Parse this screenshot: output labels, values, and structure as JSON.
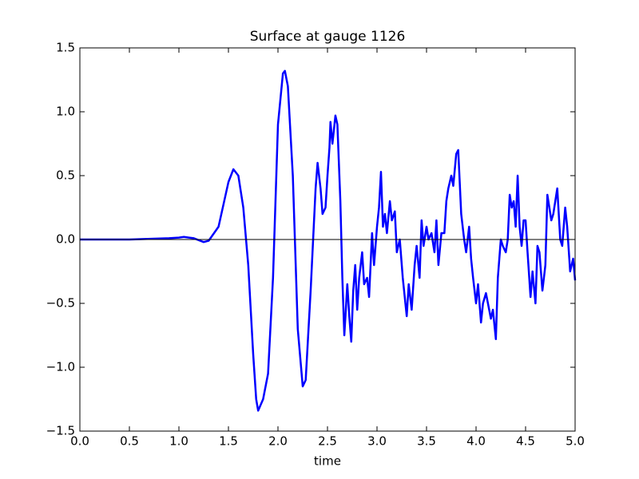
{
  "chart_data": {
    "type": "line",
    "title": "Surface at gauge 1126",
    "x_label": "time",
    "x": [
      0,
      0.5,
      0.9,
      1.0,
      1.05,
      1.1,
      1.15,
      1.25,
      1.3,
      1.4,
      1.5,
      1.55,
      1.6,
      1.65,
      1.7,
      1.75,
      1.78,
      1.8,
      1.85,
      1.9,
      1.95,
      2.0,
      2.05,
      2.07,
      2.1,
      2.15,
      2.2,
      2.25,
      2.28,
      2.33,
      2.38,
      2.4,
      2.43,
      2.45,
      2.48,
      2.5,
      2.52,
      2.53,
      2.55,
      2.58,
      2.6,
      2.63,
      2.65,
      2.67,
      2.7,
      2.72,
      2.74,
      2.76,
      2.78,
      2.8,
      2.82,
      2.85,
      2.87,
      2.9,
      2.92,
      2.95,
      2.97,
      3.0,
      3.02,
      3.04,
      3.06,
      3.08,
      3.1,
      3.13,
      3.15,
      3.18,
      3.2,
      3.23,
      3.26,
      3.3,
      3.32,
      3.35,
      3.38,
      3.4,
      3.43,
      3.45,
      3.47,
      3.5,
      3.52,
      3.55,
      3.58,
      3.6,
      3.62,
      3.65,
      3.68,
      3.7,
      3.72,
      3.75,
      3.77,
      3.8,
      3.82,
      3.85,
      3.88,
      3.9,
      3.93,
      3.95,
      3.97,
      4.0,
      4.02,
      4.05,
      4.07,
      4.1,
      4.12,
      4.15,
      4.17,
      4.2,
      4.22,
      4.25,
      4.27,
      4.3,
      4.32,
      4.34,
      4.36,
      4.38,
      4.4,
      4.42,
      4.44,
      4.46,
      4.48,
      4.5,
      4.52,
      4.55,
      4.57,
      4.6,
      4.62,
      4.64,
      4.67,
      4.7,
      4.72,
      4.74,
      4.76,
      4.78,
      4.8,
      4.82,
      4.85,
      4.87,
      4.9,
      4.92,
      4.95,
      4.98,
      5.0
    ],
    "series": [
      {
        "color": "#0000ff",
        "values": [
          0,
          0,
          0.01,
          0.015,
          0.02,
          0.015,
          0.01,
          -0.02,
          -0.01,
          0.1,
          0.45,
          0.55,
          0.5,
          0.25,
          -0.2,
          -0.9,
          -1.25,
          -1.34,
          -1.25,
          -1.05,
          -0.3,
          0.9,
          1.3,
          1.32,
          1.2,
          0.5,
          -0.7,
          -1.15,
          -1.1,
          -0.4,
          0.4,
          0.6,
          0.4,
          0.2,
          0.25,
          0.5,
          0.72,
          0.92,
          0.75,
          0.97,
          0.9,
          0.3,
          -0.3,
          -0.75,
          -0.35,
          -0.6,
          -0.8,
          -0.4,
          -0.2,
          -0.55,
          -0.3,
          -0.1,
          -0.35,
          -0.3,
          -0.45,
          0.05,
          -0.2,
          0.1,
          0.25,
          0.53,
          0.1,
          0.2,
          0.05,
          0.3,
          0.15,
          0.22,
          -0.1,
          0.0,
          -0.3,
          -0.6,
          -0.35,
          -0.55,
          -0.2,
          -0.05,
          -0.3,
          0.15,
          -0.05,
          0.1,
          0.0,
          0.05,
          -0.1,
          0.15,
          -0.2,
          0.05,
          0.05,
          0.3,
          0.4,
          0.5,
          0.42,
          0.67,
          0.7,
          0.2,
          0.0,
          -0.1,
          0.1,
          -0.15,
          -0.3,
          -0.5,
          -0.35,
          -0.65,
          -0.5,
          -0.42,
          -0.5,
          -0.62,
          -0.55,
          -0.78,
          -0.3,
          0.0,
          -0.05,
          -0.1,
          0.0,
          0.35,
          0.25,
          0.3,
          0.1,
          0.5,
          0.1,
          -0.05,
          0.15,
          0.15,
          -0.1,
          -0.45,
          -0.25,
          -0.5,
          -0.05,
          -0.1,
          -0.4,
          -0.2,
          0.35,
          0.25,
          0.15,
          0.2,
          0.3,
          0.4,
          0.0,
          -0.05,
          0.25,
          0.1,
          -0.25,
          -0.15,
          -0.32
        ]
      }
    ],
    "hline": 0,
    "xlim": [
      0,
      5
    ],
    "ylim": [
      -1.5,
      1.5
    ],
    "xticks": [
      {
        "value": 0,
        "label": "0.0"
      },
      {
        "value": 0.5,
        "label": "0.5"
      },
      {
        "value": 1,
        "label": "1.0"
      },
      {
        "value": 1.5,
        "label": "1.5"
      },
      {
        "value": 2,
        "label": "2.0"
      },
      {
        "value": 2.5,
        "label": "2.5"
      },
      {
        "value": 3,
        "label": "3.0"
      },
      {
        "value": 3.5,
        "label": "3.5"
      },
      {
        "value": 4,
        "label": "4.0"
      },
      {
        "value": 4.5,
        "label": "4.5"
      },
      {
        "value": 5,
        "label": "5.0"
      }
    ],
    "yticks": [
      {
        "value": -1.5,
        "label": "−1.5"
      },
      {
        "value": -1,
        "label": "−1.0"
      },
      {
        "value": -0.5,
        "label": "−0.5"
      },
      {
        "value": 0,
        "label": "0.0"
      },
      {
        "value": 0.5,
        "label": "0.5"
      },
      {
        "value": 1,
        "label": "1.0"
      },
      {
        "value": 1.5,
        "label": "1.5"
      }
    ]
  }
}
